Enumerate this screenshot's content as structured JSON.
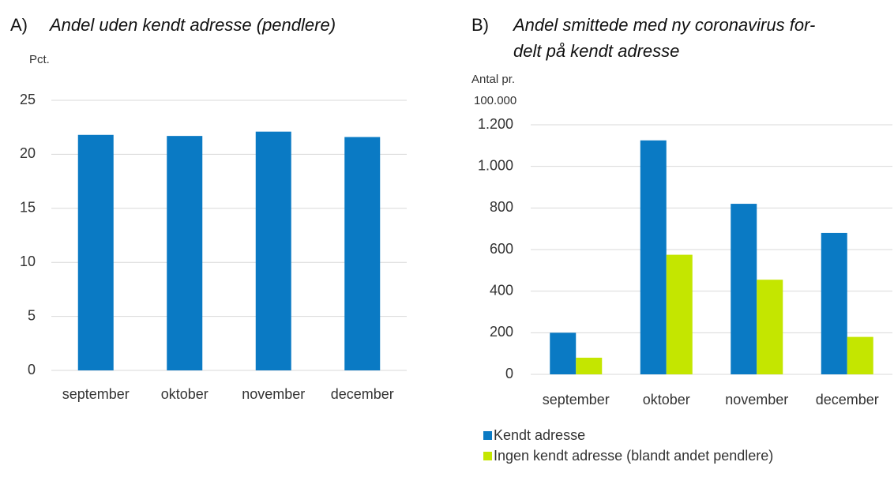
{
  "chart_data": [
    {
      "type": "bar",
      "label": "A)",
      "title_lines": [
        "Andel uden kendt adresse (pendlere)"
      ],
      "ylabel_lines": [
        "Pct."
      ],
      "categories": [
        "september",
        "oktober",
        "november",
        "december"
      ],
      "values": [
        21.8,
        21.7,
        22.1,
        21.6
      ],
      "color": "#0a7ac4",
      "ylim": [
        0,
        25
      ],
      "yticks": [
        0,
        5,
        10,
        15,
        20,
        25
      ],
      "grid": true
    },
    {
      "type": "bar",
      "label": "B)",
      "title_lines": [
        "Andel smittede med ny coronavirus for-",
        "delt på kendt adresse"
      ],
      "ylabel_lines": [
        "Antal pr.",
        "100.000"
      ],
      "categories": [
        "september",
        "oktober",
        "november",
        "december"
      ],
      "series": [
        {
          "name": "Kendt adresse",
          "color": "#0a7ac4",
          "values": [
            200,
            1125,
            820,
            680
          ]
        },
        {
          "name": "Ingen kendt adresse (blandt andet pendlere)",
          "color": "#c4e600",
          "values": [
            80,
            575,
            455,
            180
          ]
        }
      ],
      "ylim": [
        0,
        1200
      ],
      "yticks": [
        0,
        200,
        400,
        600,
        800,
        {
          "value": 1000,
          "label": "1.000"
        },
        {
          "value": 1200,
          "label": "1.200"
        }
      ],
      "grid": true,
      "legend": "bottom"
    }
  ]
}
